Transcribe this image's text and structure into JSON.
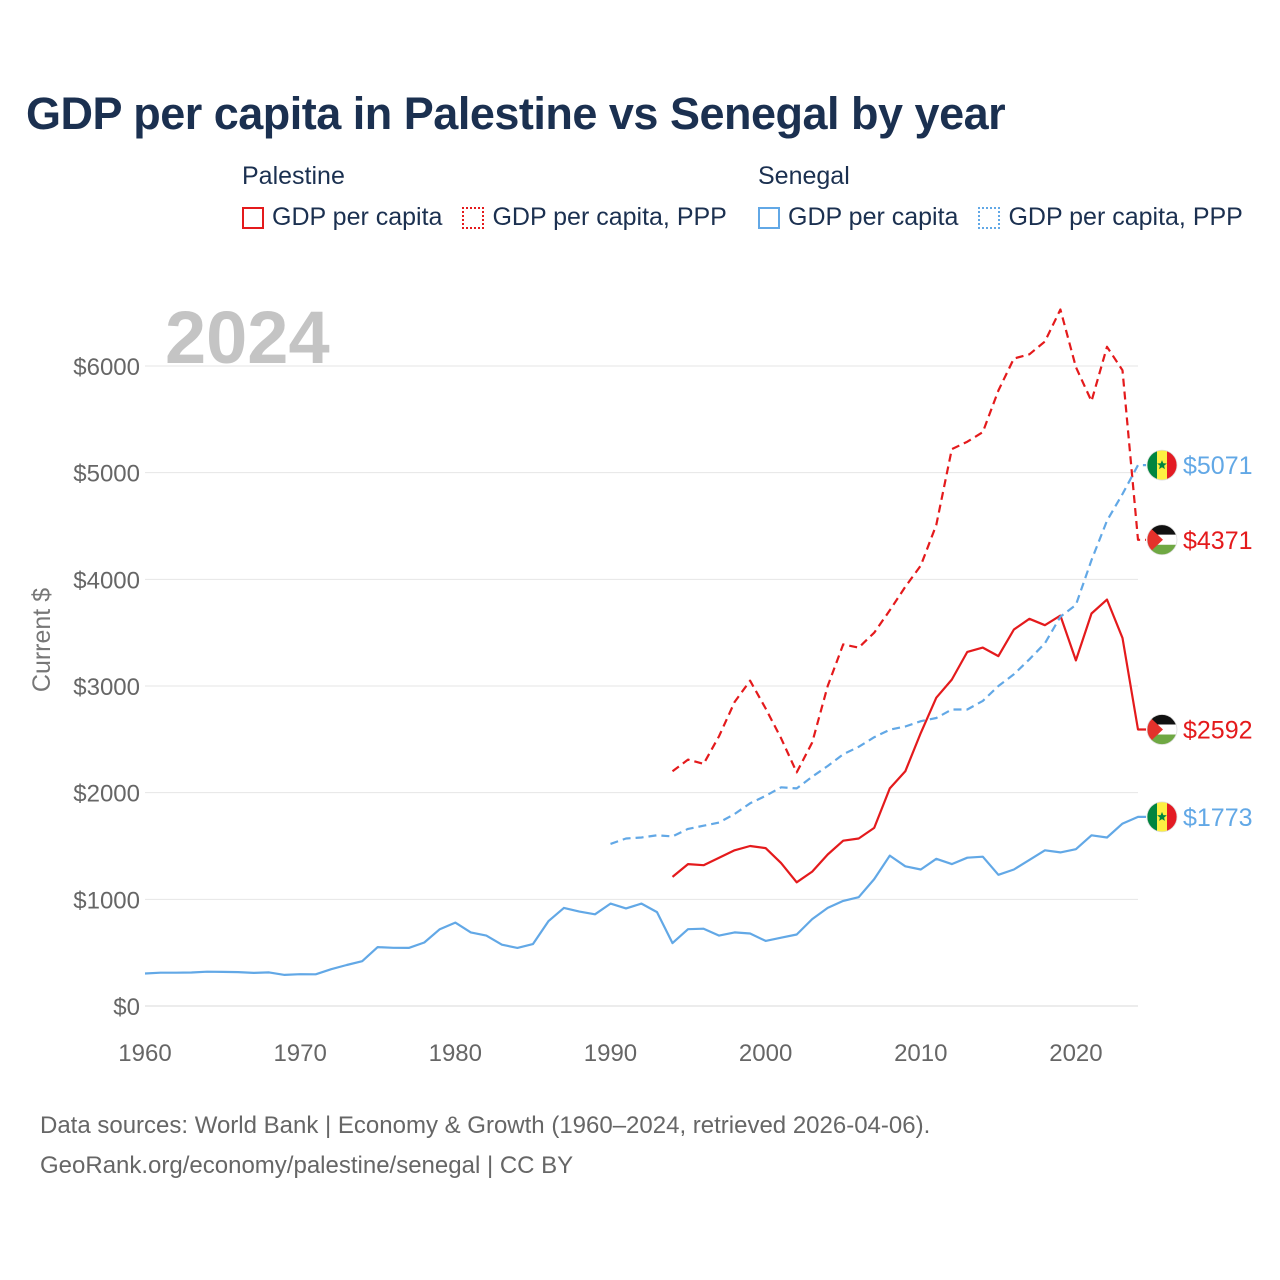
{
  "title": "GDP per capita in Palestine vs Senegal by year",
  "legend": {
    "groups": [
      {
        "name": "Palestine",
        "color": "#e41a1c",
        "items": [
          {
            "label": "GDP per capita",
            "style": "solid"
          },
          {
            "label": "GDP per capita, PPP",
            "style": "dotted"
          }
        ]
      },
      {
        "name": "Senegal",
        "color": "#62a8e6",
        "items": [
          {
            "label": "GDP per capita",
            "style": "solid"
          },
          {
            "label": "GDP per capita, PPP",
            "style": "dotted"
          }
        ]
      }
    ]
  },
  "year_label": "2024",
  "source_line1": "Data sources: World Bank | Economy & Growth (1960–2024, retrieved 2026-04-06).",
  "source_line2": "GeoRank.org/economy/palestine/senegal | CC BY",
  "chart_data": {
    "type": "line",
    "title": "GDP per capita in Palestine vs Senegal by year",
    "xlabel": "",
    "ylabel": "Current $",
    "xlim": [
      1960,
      2024
    ],
    "ylim": [
      0,
      6500
    ],
    "x_ticks": [
      1960,
      1970,
      1980,
      1990,
      2000,
      2010,
      2020
    ],
    "x_tick_labels": [
      "1960",
      "1970",
      "1980",
      "1990",
      "2000",
      "2010",
      "2020"
    ],
    "y_ticks": [
      0,
      1000,
      2000,
      3000,
      4000,
      5000,
      6000
    ],
    "y_tick_labels": [
      "$0",
      "$1000",
      "$2000",
      "$3000",
      "$4000",
      "$5000",
      "$6000"
    ],
    "grid": true,
    "series": [
      {
        "name": "Palestine GDP per capita",
        "country": "Palestine",
        "color": "#e41a1c",
        "dash": "solid",
        "end_label": "$2592",
        "x": [
          1994,
          1995,
          1996,
          1997,
          1998,
          1999,
          2000,
          2001,
          2002,
          2003,
          2004,
          2005,
          2006,
          2007,
          2008,
          2009,
          2010,
          2011,
          2012,
          2013,
          2014,
          2015,
          2016,
          2017,
          2018,
          2019,
          2020,
          2021,
          2022,
          2023,
          2024
        ],
        "values": [
          1210,
          1330,
          1320,
          1390,
          1460,
          1500,
          1480,
          1340,
          1160,
          1260,
          1420,
          1550,
          1570,
          1670,
          2040,
          2200,
          2560,
          2890,
          3060,
          3320,
          3360,
          3280,
          3530,
          3630,
          3570,
          3660,
          3240,
          3680,
          3810,
          3450,
          2592
        ]
      },
      {
        "name": "Palestine GDP per capita, PPP",
        "country": "Palestine",
        "color": "#e41a1c",
        "dash": "dashed",
        "end_label": "$4371",
        "x": [
          1994,
          1995,
          1996,
          1997,
          1998,
          1999,
          2000,
          2001,
          2002,
          2003,
          2004,
          2005,
          2006,
          2007,
          2008,
          2009,
          2010,
          2011,
          2012,
          2013,
          2014,
          2015,
          2016,
          2017,
          2018,
          2019,
          2020,
          2021,
          2022,
          2023,
          2024
        ],
        "values": [
          2200,
          2310,
          2270,
          2530,
          2850,
          3050,
          2790,
          2510,
          2190,
          2470,
          3000,
          3390,
          3360,
          3500,
          3710,
          3930,
          4130,
          4510,
          5220,
          5290,
          5380,
          5770,
          6070,
          6110,
          6230,
          6530,
          5990,
          5670,
          6180,
          5960,
          4371
        ]
      },
      {
        "name": "Senegal GDP per capita",
        "country": "Senegal",
        "color": "#62a8e6",
        "dash": "solid",
        "end_label": "$1773",
        "x": [
          1960,
          1961,
          1962,
          1963,
          1964,
          1965,
          1966,
          1967,
          1968,
          1969,
          1970,
          1971,
          1972,
          1973,
          1974,
          1975,
          1976,
          1977,
          1978,
          1979,
          1980,
          1981,
          1982,
          1983,
          1984,
          1985,
          1986,
          1987,
          1988,
          1989,
          1990,
          1991,
          1992,
          1993,
          1994,
          1995,
          1996,
          1997,
          1998,
          1999,
          2000,
          2001,
          2002,
          2003,
          2004,
          2005,
          2006,
          2007,
          2008,
          2009,
          2010,
          2011,
          2012,
          2013,
          2014,
          2015,
          2016,
          2017,
          2018,
          2019,
          2020,
          2021,
          2022,
          2023,
          2024
        ],
        "values": [
          305,
          312,
          312,
          314,
          322,
          320,
          318,
          310,
          315,
          292,
          298,
          297,
          345,
          384,
          420,
          552,
          546,
          545,
          595,
          720,
          782,
          690,
          660,
          575,
          545,
          580,
          795,
          920,
          885,
          860,
          960,
          915,
          960,
          880,
          590,
          720,
          725,
          660,
          690,
          680,
          610,
          640,
          670,
          815,
          920,
          985,
          1020,
          1190,
          1410,
          1310,
          1280,
          1380,
          1330,
          1390,
          1400,
          1230,
          1280,
          1370,
          1460,
          1440,
          1470,
          1600,
          1580,
          1710,
          1773
        ]
      },
      {
        "name": "Senegal GDP per capita, PPP",
        "country": "Senegal",
        "color": "#62a8e6",
        "dash": "dashed",
        "end_label": "$5071",
        "x": [
          1990,
          1991,
          1992,
          1993,
          1994,
          1995,
          1996,
          1997,
          1998,
          1999,
          2000,
          2001,
          2002,
          2003,
          2004,
          2005,
          2006,
          2007,
          2008,
          2009,
          2010,
          2011,
          2012,
          2013,
          2014,
          2015,
          2016,
          2017,
          2018,
          2019,
          2020,
          2021,
          2022,
          2023,
          2024
        ],
        "values": [
          1520,
          1570,
          1580,
          1600,
          1590,
          1660,
          1690,
          1720,
          1800,
          1900,
          1970,
          2050,
          2040,
          2150,
          2250,
          2360,
          2430,
          2520,
          2590,
          2620,
          2670,
          2700,
          2780,
          2780,
          2860,
          3000,
          3110,
          3250,
          3400,
          3650,
          3760,
          4180,
          4550,
          4800,
          5071
        ]
      }
    ]
  }
}
